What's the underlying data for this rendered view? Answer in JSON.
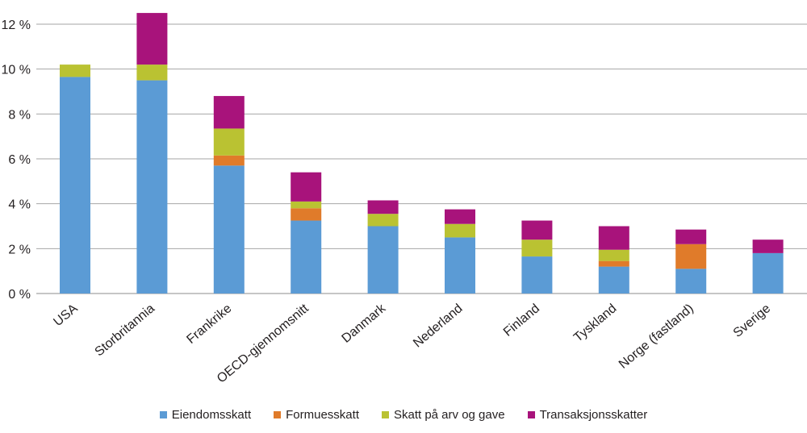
{
  "chart_data": {
    "type": "bar",
    "stacked": true,
    "title": "",
    "xlabel": "",
    "ylabel": "",
    "ylim": [
      0,
      12
    ],
    "yticks": [
      0,
      2,
      4,
      6,
      8,
      10,
      12
    ],
    "ytick_labels": [
      "0 %",
      "2 %",
      "4 %",
      "6 %",
      "8 %",
      "10 %",
      "12 %"
    ],
    "grid": true,
    "legend_position": "bottom",
    "categories": [
      "USA",
      "Storbritannia",
      "Frankrike",
      "OECD-gjennomsnitt",
      "Danmark",
      "Nederland",
      "Finland",
      "Tyskland",
      "Norge (fastland)",
      "Sverige"
    ],
    "series": [
      {
        "name": "Eiendomsskatt",
        "color": "#5b9bd5",
        "values": [
          9.65,
          9.5,
          5.7,
          3.25,
          3.0,
          2.5,
          1.65,
          1.2,
          1.1,
          1.8
        ]
      },
      {
        "name": "Formuesskatt",
        "color": "#e07b2a",
        "values": [
          0,
          0,
          0.45,
          0.55,
          0,
          0,
          0,
          0.25,
          1.1,
          0
        ]
      },
      {
        "name": "Skatt på arv og gave",
        "color": "#bac232",
        "values": [
          0.55,
          0.7,
          1.2,
          0.3,
          0.55,
          0.6,
          0.75,
          0.5,
          0,
          0
        ]
      },
      {
        "name": "Transaksjonsskatter",
        "color": "#a8137b",
        "values": [
          0,
          2.3,
          1.45,
          1.3,
          0.6,
          0.65,
          0.85,
          1.05,
          0.65,
          0.6
        ]
      }
    ]
  }
}
